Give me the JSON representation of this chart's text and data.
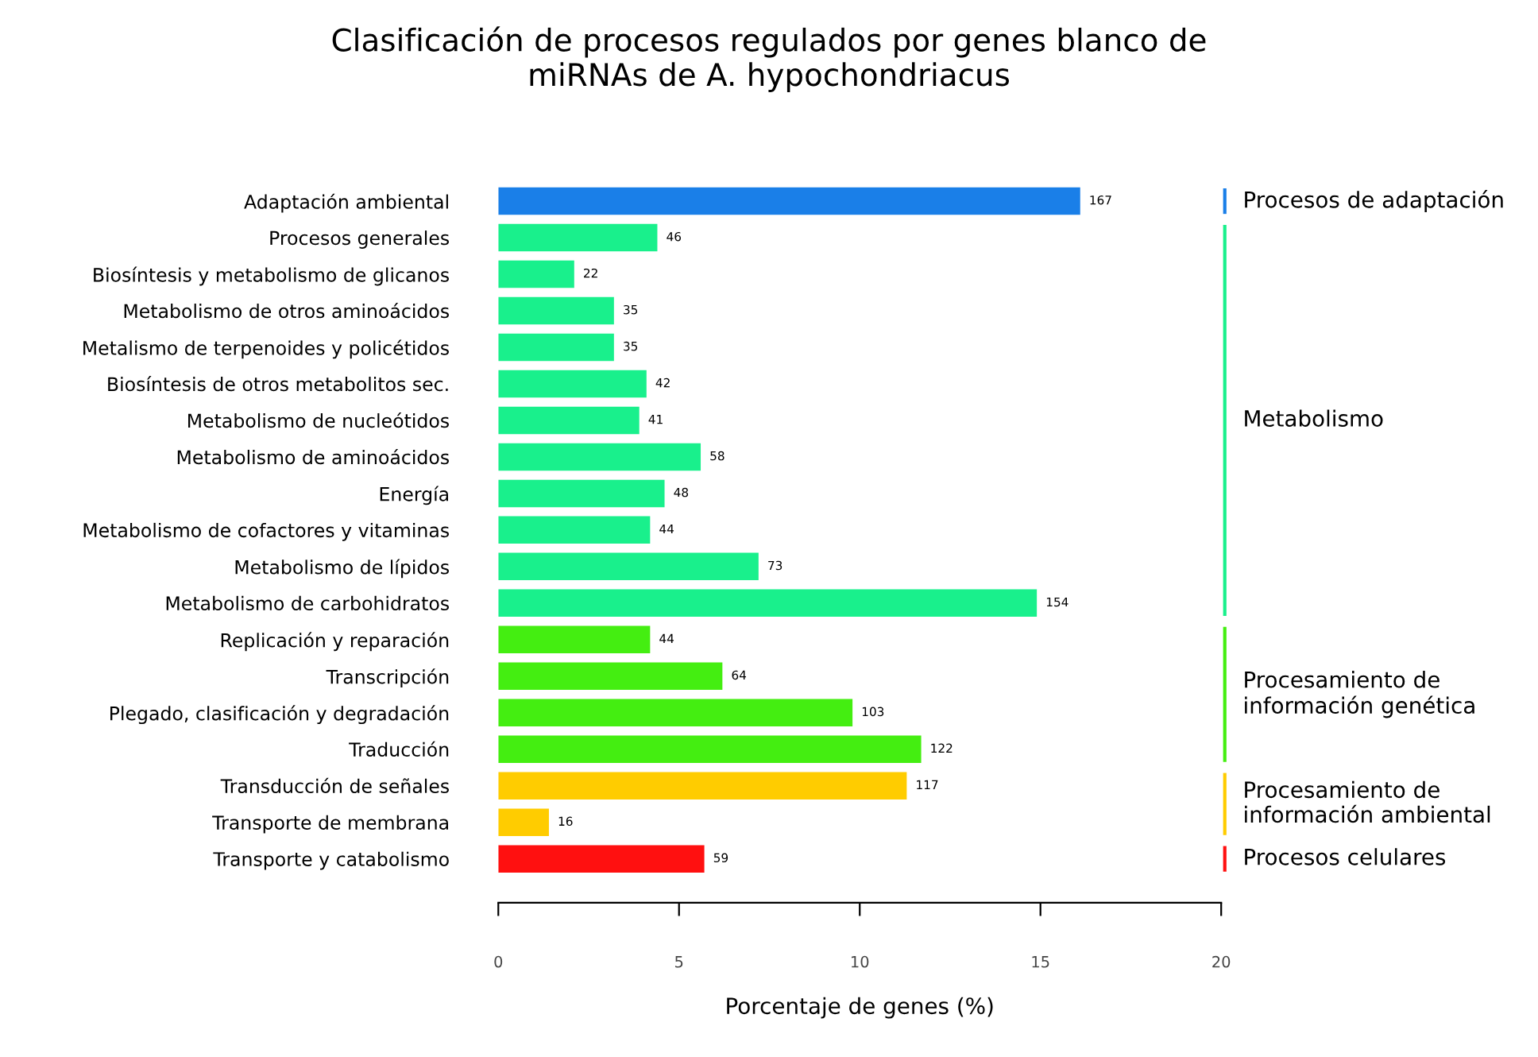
{
  "chart_data": {
    "type": "bar",
    "orientation": "horizontal",
    "title": "Clasificación de procesos regulados por genes blanco de\nmiRNAs de A. hypochondriacus",
    "xlabel": "Porcentaje de genes (%)",
    "categories": [
      "Adaptación ambiental",
      "Procesos generales",
      "Biosíntesis y metabolismo de glicanos",
      "Metabolismo de otros aminoácidos",
      "Metalismo de terpenoides y policétidos",
      "Biosíntesis de otros metabolitos sec.",
      "Metabolismo de nucleótidos",
      "Metabolismo de aminoácidos",
      "Energía",
      "Metabolismo de cofactores y vitaminas",
      "Metabolismo de lípidos",
      "Metabolismo de carbohidratos",
      "Replicación y reparación",
      "Transcripción",
      "Plegado, clasificación y degradación",
      "Traducción",
      "Transducción de señales",
      "Transporte de membrana",
      "Transporte y catabolismo"
    ],
    "values": [
      16.1,
      4.4,
      2.1,
      3.2,
      3.2,
      4.1,
      3.9,
      5.6,
      4.6,
      4.2,
      7.2,
      14.9,
      4.2,
      6.2,
      9.8,
      11.7,
      11.3,
      1.4,
      5.7
    ],
    "colors": [
      "#1a7fe8",
      "#19f08c",
      "#19f08c",
      "#19f08c",
      "#19f08c",
      "#19f08c",
      "#19f08c",
      "#19f08c",
      "#19f08c",
      "#19f08c",
      "#19f08c",
      "#19f08c",
      "#44ee11",
      "#44ee11",
      "#44ee11",
      "#44ee11",
      "#ffcc00",
      "#ffcc00",
      "#ff1010"
    ],
    "xlim": [
      0,
      20
    ],
    "xticks": [
      0,
      5,
      10,
      15,
      20
    ],
    "annotations": [
      "Procesos de adaptación",
      "Metabolismo",
      "Procesamiento de\ninformación genética",
      "Procesamiento de\ninformación ambiental",
      "Procesos celulares",
      {
        "text": "167",
        "x": 16.1,
        "y": "Adaptación ambiental"
      },
      {
        "text": "46",
        "x": 4.4,
        "y": "Procesos generales"
      },
      {
        "text": "22",
        "x": 2.1,
        "y": "Biosíntesis y metabolismo de glicanos"
      },
      {
        "text": "35",
        "x": 3.2,
        "y": "Metabolismo de otros aminoácidos"
      },
      {
        "text": "35",
        "x": 3.2,
        "y": "Metalismo de terpenoides y policétidos"
      },
      {
        "text": "42",
        "x": 4.1,
        "y": "Biosíntesis de otros metabolitos sec."
      },
      {
        "text": "41",
        "x": 3.9,
        "y": "Metabolismo de nucleótidos"
      },
      {
        "text": "58",
        "x": 5.6,
        "y": "Metabolismo de aminoácidos"
      },
      {
        "text": "48",
        "x": 4.6,
        "y": "Energía"
      },
      {
        "text": "44",
        "x": 4.2,
        "y": "Metabolismo de cofactores y vitaminas"
      },
      {
        "text": "73",
        "x": 7.2,
        "y": "Metabolismo de lípidos"
      },
      {
        "text": "154",
        "x": 14.9,
        "y": "Metabolismo de carbohidratos"
      },
      {
        "text": "44",
        "x": 4.2,
        "y": "Replicación y reparación"
      },
      {
        "text": "64",
        "x": 6.2,
        "y": "Transcripción"
      },
      {
        "text": "103",
        "x": 9.8,
        "y": "Plegado, clasificación y degradación"
      },
      {
        "text": "122",
        "x": 11.7,
        "y": "Traducción"
      },
      {
        "text": "117",
        "x": 11.3,
        "y": "Transducción de señales"
      },
      {
        "text": "16",
        "x": 1.4,
        "y": "Transporte de membrana"
      },
      {
        "text": "59",
        "x": 5.7,
        "y": "Transporte y catabolismo"
      }
    ],
    "grid": false,
    "legend": false
  }
}
